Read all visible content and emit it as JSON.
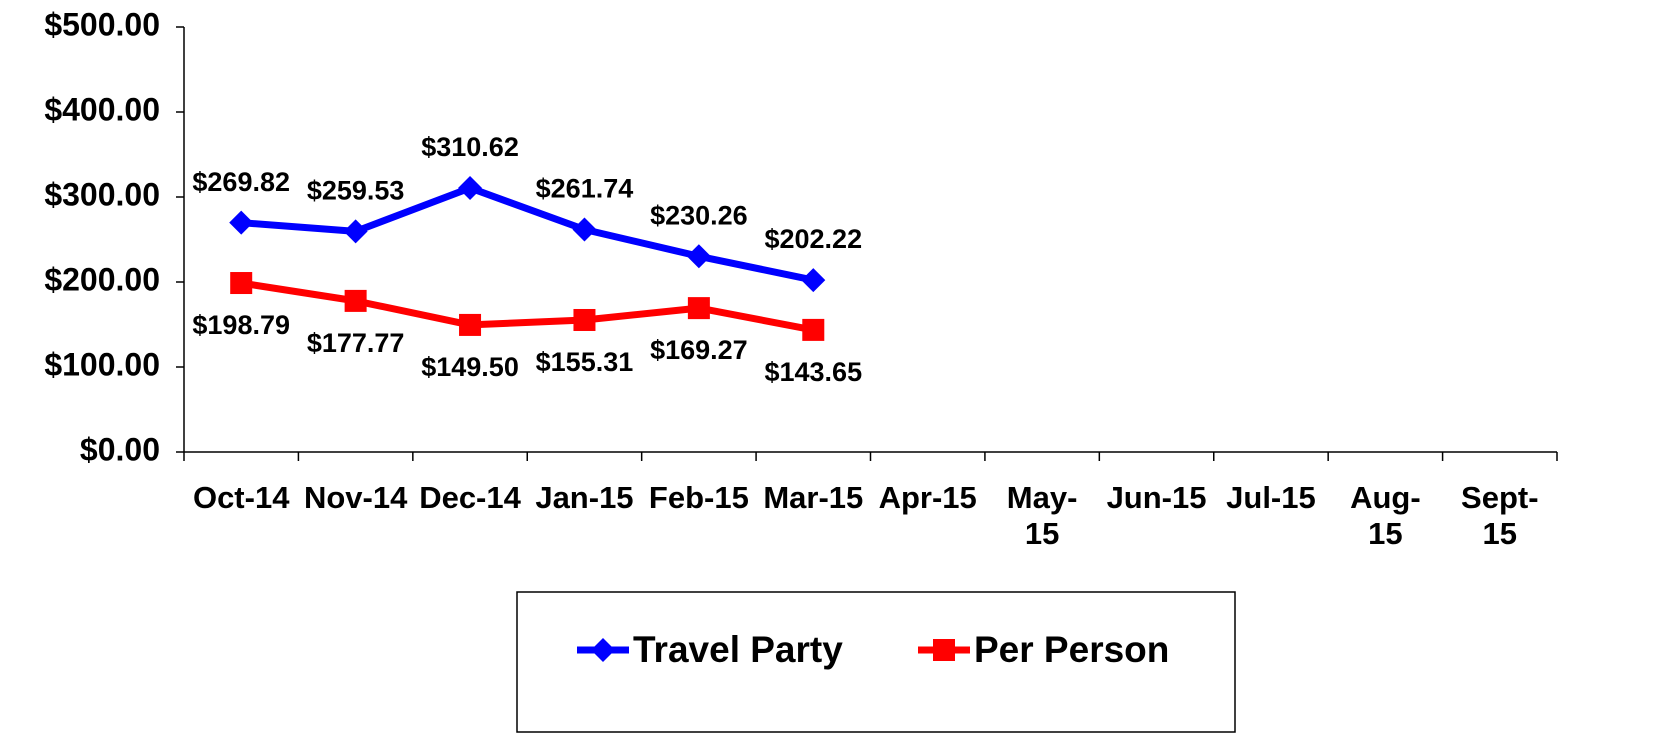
{
  "chart_data": {
    "type": "line",
    "categories": [
      "Oct-14",
      "Nov-14",
      "Dec-14",
      "Jan-15",
      "Feb-15",
      "Mar-15",
      "Apr-15",
      "May-15",
      "Jun-15",
      "Jul-15",
      "Aug-15",
      "Sept-15"
    ],
    "series": [
      {
        "name": "Travel Party",
        "color": "#0000ff",
        "marker": "diamond",
        "values": [
          269.82,
          259.53,
          310.62,
          261.74,
          230.26,
          202.22,
          null,
          null,
          null,
          null,
          null,
          null
        ],
        "value_labels": [
          "$269.82",
          "$259.53",
          "$310.62",
          "$261.74",
          "$230.26",
          "$202.22",
          null,
          null,
          null,
          null,
          null,
          null
        ]
      },
      {
        "name": "Per Person",
        "color": "#ff0000",
        "marker": "square",
        "values": [
          198.79,
          177.77,
          149.5,
          155.31,
          169.27,
          143.65,
          null,
          null,
          null,
          null,
          null,
          null
        ],
        "value_labels": [
          "$198.79",
          "$177.77",
          "$149.50",
          "$155.31",
          "$169.27",
          "$143.65",
          null,
          null,
          null,
          null,
          null,
          null
        ]
      }
    ],
    "ylim": [
      0,
      500
    ],
    "yticks": [
      {
        "value": 0,
        "label": "$0.00"
      },
      {
        "value": 100,
        "label": "$100.00"
      },
      {
        "value": 200,
        "label": "$200.00"
      },
      {
        "value": 300,
        "label": "$300.00"
      },
      {
        "value": 400,
        "label": "$400.00"
      },
      {
        "value": 500,
        "label": "$500.00"
      }
    ],
    "legend": "bottom"
  }
}
